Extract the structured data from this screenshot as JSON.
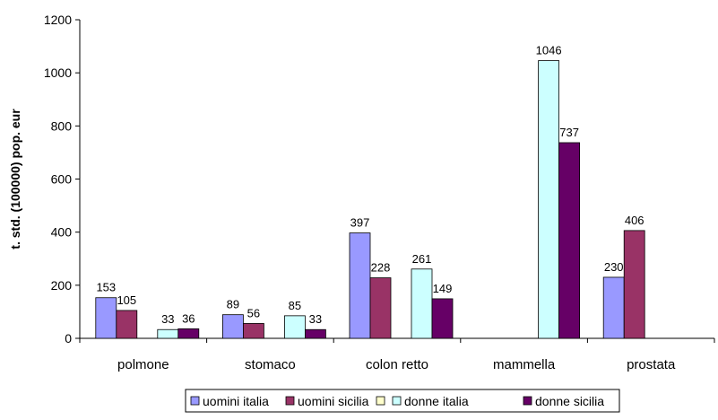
{
  "chart_data": {
    "type": "bar",
    "ylabel": "t. std. (100000) pop. eur",
    "xlabel": "",
    "ylim": [
      0,
      1200
    ],
    "yticks": [
      "0",
      "200",
      "400",
      "600",
      "800",
      "1000",
      "1200"
    ],
    "categories": [
      "polmone",
      "stomaco",
      "colon retto",
      "mammella",
      "prostata"
    ],
    "series": [
      {
        "name": "uomini italia",
        "color": "#9999ff",
        "values": [
          153,
          89,
          397,
          null,
          230
        ]
      },
      {
        "name": "uomini sicilia",
        "color": "#993366",
        "values": [
          105,
          56,
          228,
          null,
          406
        ]
      },
      {
        "name": "donne italia",
        "color": "#ffffcc",
        "values": [
          null,
          null,
          null,
          null,
          null
        ]
      },
      {
        "name": "donne italia",
        "color": "#ccffff",
        "values": [
          33,
          85,
          261,
          1046,
          null
        ]
      },
      {
        "name": "donne sicilia",
        "color": "#660066",
        "values": [
          36,
          33,
          149,
          737,
          null
        ]
      }
    ],
    "data_labels": [
      [
        "153",
        "89",
        "397",
        "",
        "230"
      ],
      [
        "105",
        "56",
        "228",
        "",
        "406"
      ],
      [
        "",
        "",
        "",
        "",
        ""
      ],
      [
        "33",
        "85",
        "261",
        "1046",
        ""
      ],
      [
        "36",
        "33",
        "149",
        "737",
        ""
      ]
    ],
    "legend": {
      "position": "bottom",
      "entries": [
        {
          "label": "uomini italia",
          "color": "#9999ff"
        },
        {
          "label": "uomini sicilia",
          "color": "#993366"
        },
        {
          "label": "",
          "color": "#ffffcc"
        },
        {
          "label": "donne italia",
          "color": "#ccffff"
        },
        {
          "label": "donne sicilia",
          "color": "#660066"
        }
      ]
    },
    "grid": false
  }
}
